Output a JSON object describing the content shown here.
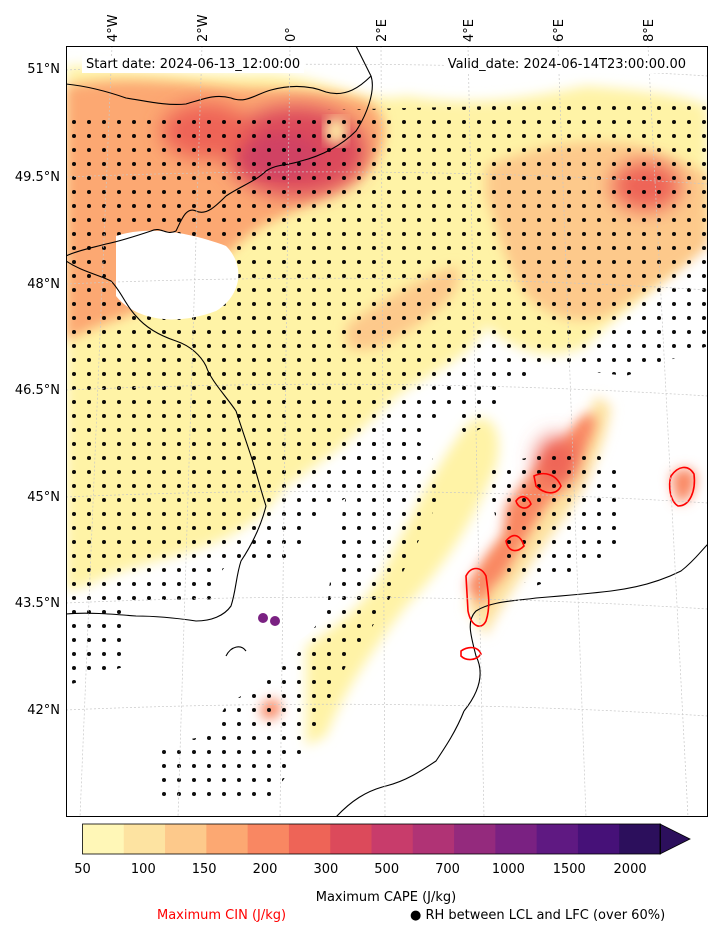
{
  "map": {
    "start_text": "Start date: 2024-06-13_12:00:00",
    "valid_text": "Valid_date: 2024-06-14T23:00:00.00",
    "lon_labels": [
      "4°W",
      "2°W",
      "0°",
      "2°E",
      "4°E",
      "6°E",
      "8°E"
    ],
    "lat_labels": [
      "51°N",
      "49.5°N",
      "48°N",
      "46.5°N",
      "45°N",
      "43.5°N",
      "42°N"
    ]
  },
  "colorbar": {
    "title": "Maximum CAPE (J/kg)",
    "ticks": [
      "50",
      "100",
      "150",
      "200",
      "300",
      "500",
      "700",
      "1000",
      "1500",
      "2000"
    ],
    "colors": [
      "#fff7b7",
      "#fde3a1",
      "#fdc98b",
      "#fca872",
      "#f98762",
      "#ee6457",
      "#dc4a5b",
      "#c83c6b",
      "#b03375",
      "#942a7d",
      "#7a2182",
      "#5f1982",
      "#461178",
      "#2c0f5c"
    ]
  },
  "legend": {
    "cin_label": "Maximum CIN (J/kg)",
    "cin_color": "#ff0000",
    "rh_label": "● RH between LCL and LFC (over 60%)"
  }
}
